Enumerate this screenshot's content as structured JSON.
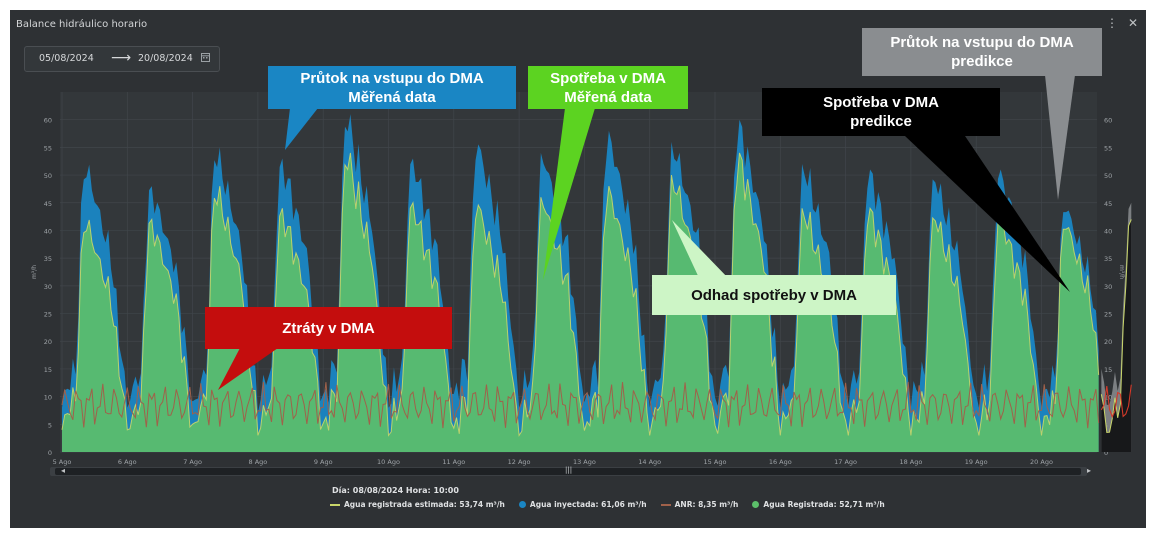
{
  "panel": {
    "title": "Balance hidráulico horario",
    "menu_icon": "vertical-dots-icon",
    "close_icon": "close-icon"
  },
  "date_range": {
    "from": "05/08/2024",
    "arrow": "⟶",
    "to": "20/08/2024",
    "calendar_icon": "calendar-icon"
  },
  "footer": {
    "date_label": "Día: 08/08/2024 Hora: 10:00",
    "legend": [
      {
        "label": "Agua registrada estimada: 53,74 m³/h",
        "color": "#c9d66a",
        "shape": "line"
      },
      {
        "label": "Agua inyectada: 61,06 m³/h",
        "color": "#1a86c4",
        "shape": "dot"
      },
      {
        "label": "ANR: 8,35 m³/h",
        "color": "#a0614a",
        "shape": "line"
      },
      {
        "label": "Agua Registrada: 52,71 m³/h",
        "color": "#5cbf6a",
        "shape": "dot"
      }
    ]
  },
  "callouts": {
    "inflow_measured": "Průtok na vstupu do DMA\nMěřená data",
    "consumption_measured": "Spotřeba v DMA\nMěřená data",
    "inflow_prediction": "Průtok na vstupu do DMA\npredikce",
    "consumption_prediction": "Spotřeba v DMA\npredikce",
    "losses": "Ztráty v DMA",
    "estimated_consumption": "Odhad spotřeby v DMA"
  },
  "chart_data": {
    "type": "area",
    "ylabel_left": "m³/h",
    "ylabel_right": "m³/h",
    "ylim": [
      0,
      65
    ],
    "yticks": [
      0,
      5,
      10,
      15,
      20,
      25,
      30,
      35,
      40,
      45,
      50,
      55,
      60
    ],
    "xlim": [
      0,
      16.4
    ],
    "xticks": [
      "5 Ago",
      "6 Ago",
      "7 Ago",
      "8 Ago",
      "9 Ago",
      "10 Ago",
      "11 Ago",
      "12 Ago",
      "13 Ago",
      "14 Ago",
      "15 Ago",
      "16 Ago",
      "17 Ago",
      "18 Ago",
      "19 Ago",
      "20 Ago"
    ],
    "grid": true,
    "prediction_start_day": 15.9,
    "series": [
      {
        "name": "Agua inyectada",
        "color": "#1a86c4",
        "daily_peak": [
          52,
          48,
          55,
          53,
          61,
          53,
          56,
          54,
          58,
          56,
          60,
          52,
          51,
          50,
          51,
          45
        ],
        "daily_trough": [
          8,
          8,
          7,
          8,
          8,
          8,
          9,
          8,
          8,
          8,
          8,
          8,
          8,
          8,
          8,
          8
        ]
      },
      {
        "name": "Agua Registrada",
        "color": "#5cbf6a",
        "daily_peak": [
          42,
          42,
          48,
          44,
          54,
          45,
          45,
          46,
          48,
          50,
          54,
          44,
          44,
          43,
          43,
          42
        ],
        "daily_trough": [
          4,
          3,
          3,
          3,
          3,
          3,
          3,
          3,
          3,
          3,
          3,
          3,
          3,
          3,
          3,
          3
        ]
      },
      {
        "name": "ANR",
        "color": "#a0614a",
        "mean": 8.5,
        "range": [
          3,
          13
        ]
      },
      {
        "name": "Agua registrada estimada",
        "color": "#c9d66a"
      }
    ]
  },
  "colors": {
    "panel_bg": "#2e3134",
    "plot_bg": "#33373a",
    "grid": "#41464b",
    "prediction_bg": "#1c1d1f",
    "prediction_inflow": "#8a8d90"
  }
}
